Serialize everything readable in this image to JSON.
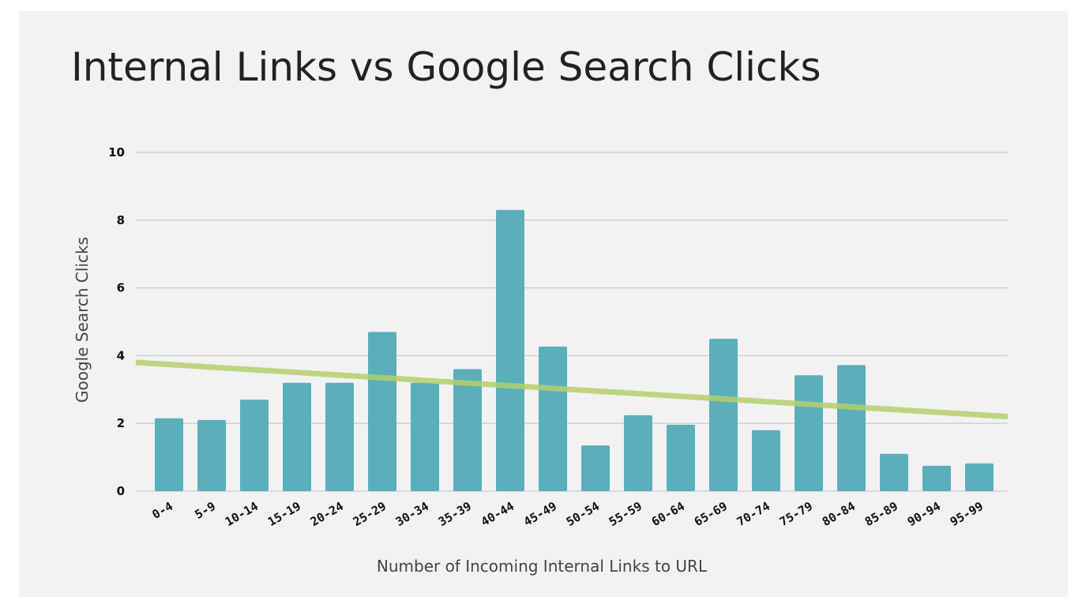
{
  "chart_data": {
    "type": "bar",
    "title": "Internal Links vs Google Search Clicks",
    "xlabel": "Number of Incoming Internal Links to URL",
    "ylabel": "Google Search Clicks",
    "ylim": [
      0,
      10
    ],
    "yticks": [
      0,
      2,
      4,
      6,
      8,
      10
    ],
    "grid": true,
    "categories": [
      "0-4",
      "5-9",
      "10-14",
      "15-19",
      "20-24",
      "25-29",
      "30-34",
      "35-39",
      "40-44",
      "45-49",
      "50-54",
      "55-59",
      "60-64",
      "65-69",
      "70-74",
      "75-79",
      "80-84",
      "85-89",
      "90-94",
      "95-99"
    ],
    "values": [
      2.15,
      2.1,
      2.7,
      3.2,
      3.2,
      4.7,
      3.2,
      3.6,
      8.3,
      4.27,
      1.35,
      2.24,
      1.96,
      4.5,
      1.8,
      3.42,
      3.72,
      1.1,
      0.75,
      0.82
    ],
    "trendline": {
      "type": "linear",
      "start": 3.8,
      "end": 2.2
    },
    "colors": {
      "bar": "#5aafbb",
      "trendline": "#b5cf6b",
      "grid": "#cccccc",
      "background": "#f2f2f2"
    }
  }
}
